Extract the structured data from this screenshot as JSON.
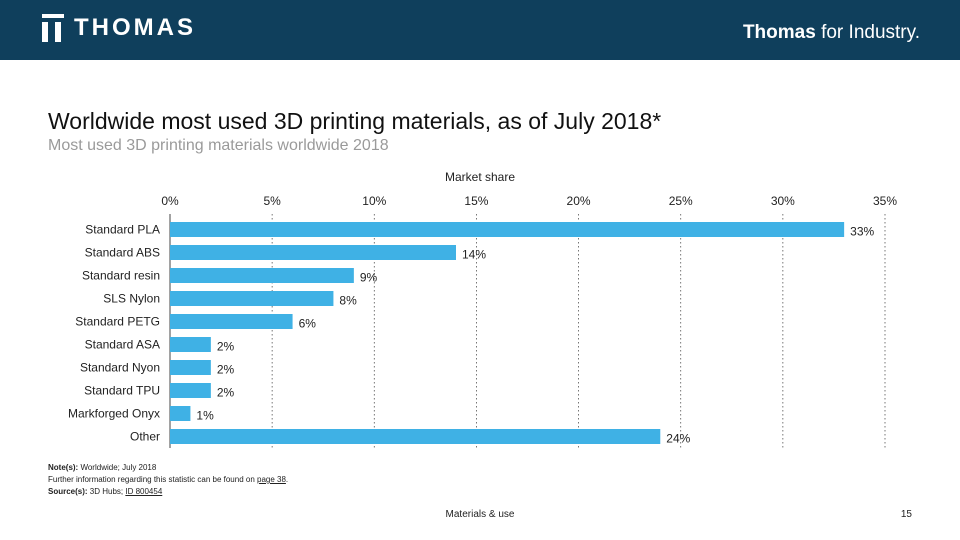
{
  "header": {
    "logo_text": "THOMAS",
    "tagline_bold": "Thomas",
    "tagline_rest": " for Industry."
  },
  "colors": {
    "header_bg": "#0f3f5c",
    "bar": "#3fb1e5"
  },
  "chart_data": {
    "type": "bar",
    "orientation": "horizontal",
    "title": "Worldwide most used 3D printing materials, as of July 2018*",
    "subtitle": "Most used 3D printing materials worldwide 2018",
    "xlabel": "Market share",
    "xlim": [
      0,
      35
    ],
    "xticks": [
      "0%",
      "5%",
      "10%",
      "15%",
      "20%",
      "25%",
      "30%",
      "35%"
    ],
    "grid": "vertical dotted",
    "categories": [
      "Standard PLA",
      "Standard ABS",
      "Standard resin",
      "SLS Nylon",
      "Standard PETG",
      "Standard ASA",
      "Standard Nyon",
      "Standard TPU",
      "Markforged Onyx",
      "Other"
    ],
    "values": [
      33,
      14,
      9,
      8,
      6,
      2,
      2,
      2,
      1,
      24
    ],
    "value_labels": [
      "33%",
      "14%",
      "9%",
      "8%",
      "6%",
      "2%",
      "2%",
      "2%",
      "1%",
      "24%"
    ]
  },
  "notes": {
    "note_label": "Note(s):",
    "note_text": " Worldwide; July 2018",
    "info_prefix": "Further information regarding this statistic can be found on ",
    "info_link": "page 38",
    "info_suffix": ".",
    "source_label": "Source(s):",
    "source_text": " 3D Hubs; ",
    "source_link": "ID 800454"
  },
  "footer": {
    "section": "Materials & use",
    "page_number": "15"
  }
}
